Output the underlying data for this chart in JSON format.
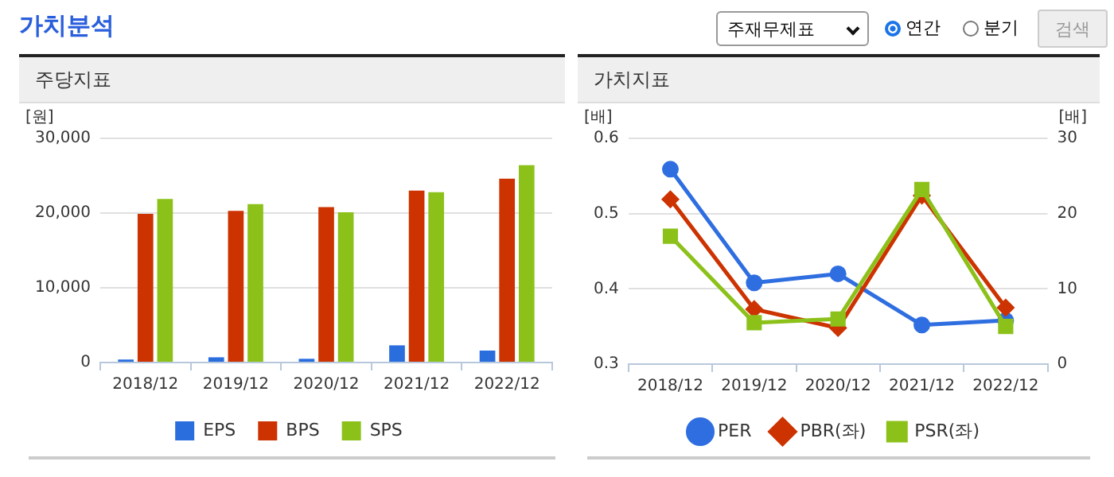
{
  "chart_data": [
    {
      "type": "bar",
      "title": "주당지표",
      "ylabel": "[원]",
      "annotations": [
        "가치분석",
        "주재무제표",
        "연간",
        "분기",
        "검색"
      ],
      "categories": [
        "2018/12",
        "2019/12",
        "2020/12",
        "2021/12",
        "2022/12"
      ],
      "series": [
        {
          "name": "EPS",
          "color": "#2a6ede",
          "values": [
            400,
            700,
            500,
            2300,
            1600
          ]
        },
        {
          "name": "BPS",
          "color": "#cc3300",
          "values": [
            19900,
            20300,
            20800,
            23000,
            24600
          ]
        },
        {
          "name": "SPS",
          "color": "#8cc11a",
          "values": [
            21900,
            21200,
            20100,
            22800,
            26400
          ]
        }
      ],
      "ylim": [
        0,
        30000
      ],
      "yticks": [
        {
          "value": 0,
          "label": "0"
        },
        {
          "value": 10000,
          "label": "10,000"
        },
        {
          "value": 20000,
          "label": "20,000"
        },
        {
          "value": 30000,
          "label": "30,000"
        }
      ],
      "grid": "y",
      "legend": "bottom"
    },
    {
      "type": "line",
      "title": "가치지표",
      "ylabel": "[배]",
      "y2label": "[배]",
      "categories": [
        "2018/12",
        "2019/12",
        "2020/12",
        "2021/12",
        "2022/12"
      ],
      "series": [
        {
          "name": "PER",
          "color": "#2f6ee0",
          "axis": "y2",
          "marker": "circle",
          "values": [
            25.9,
            10.8,
            12.0,
            5.2,
            5.8
          ]
        },
        {
          "name": "PBR(좌)",
          "color": "#cc3300",
          "marker": "diamond",
          "values": [
            0.519,
            0.373,
            0.348,
            0.524,
            0.375
          ]
        },
        {
          "name": "PSR(좌)",
          "color": "#8cc11a",
          "marker": "square",
          "values": [
            0.47,
            0.355,
            0.36,
            0.532,
            0.35
          ]
        }
      ],
      "ylim": [
        0.3,
        0.6
      ],
      "yticks": [
        0.3,
        0.4,
        0.5,
        0.6
      ],
      "y2lim": [
        0,
        30
      ],
      "y2ticks": [
        0,
        10,
        20,
        30
      ],
      "grid": "y",
      "legend": "bottom"
    }
  ]
}
